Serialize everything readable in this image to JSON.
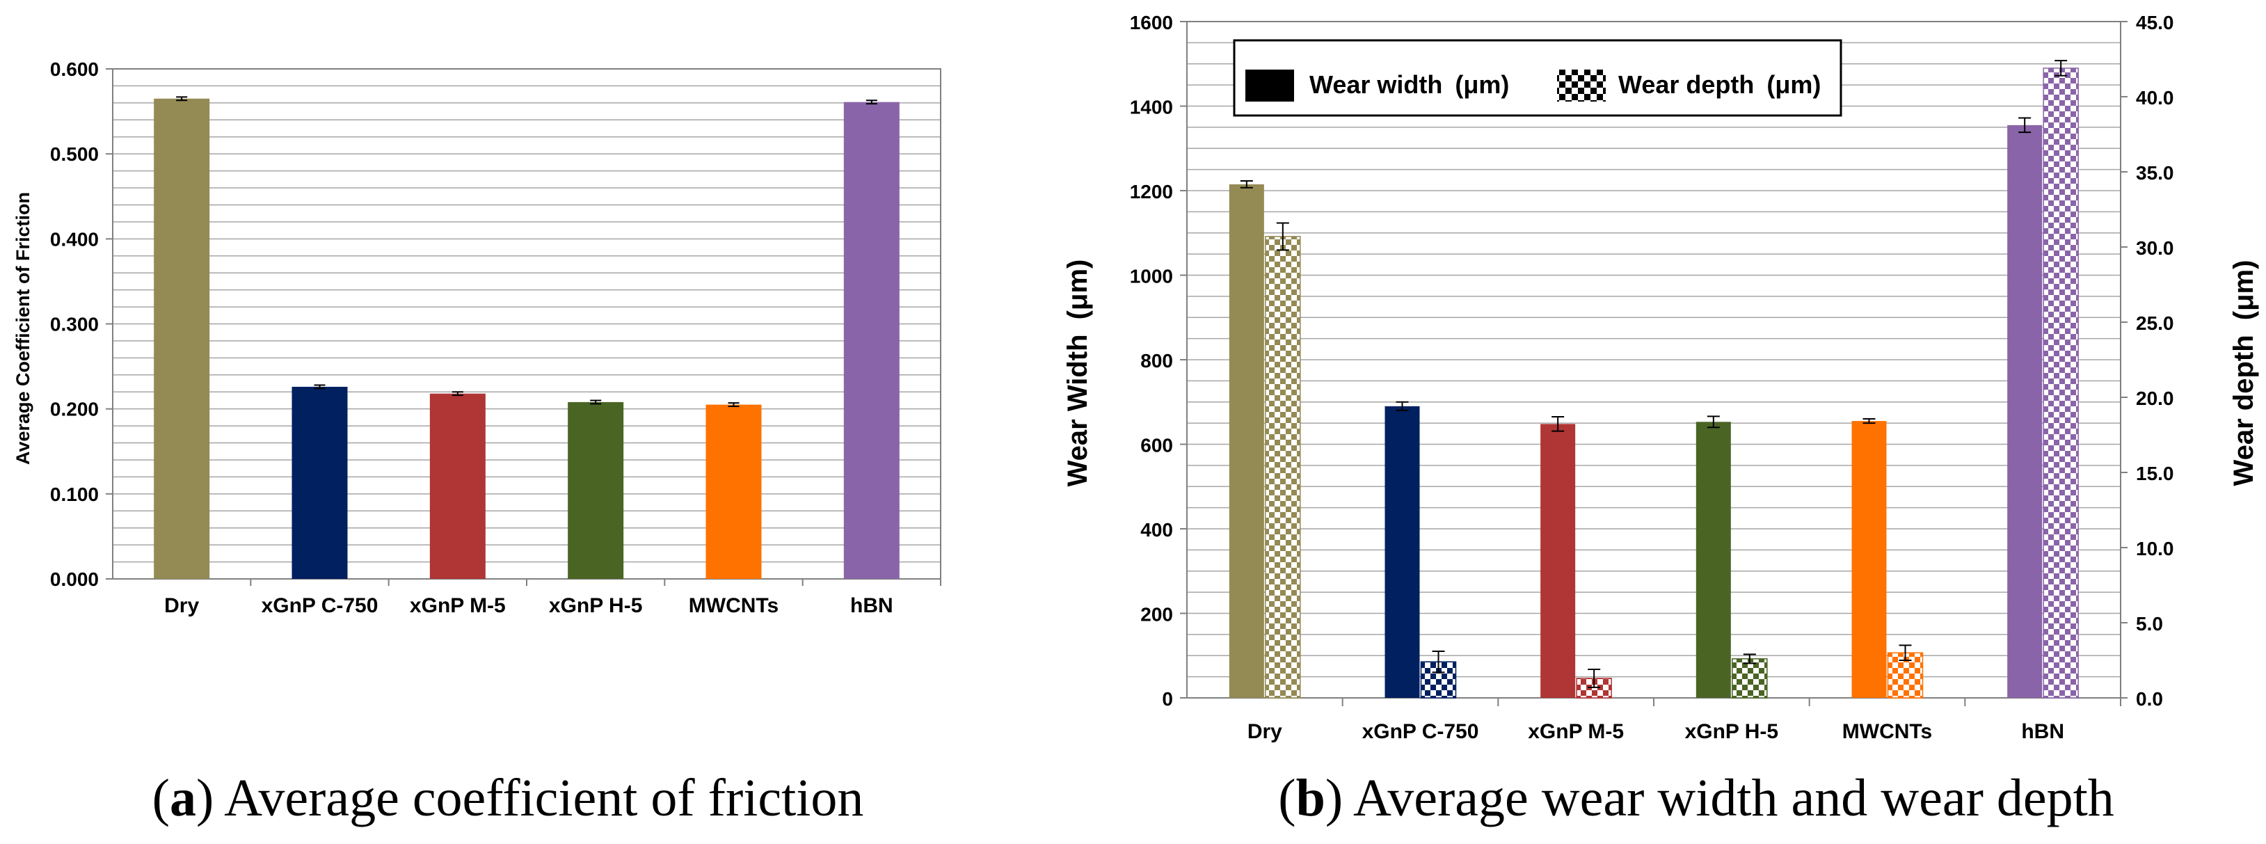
{
  "chart_data": [
    {
      "type": "bar",
      "title": "",
      "caption_letter": "a",
      "caption_text": " Average coefficient of friction",
      "xlabel": "",
      "ylabel": "Average Coefficient of Friction",
      "ylim": [
        0,
        0.6
      ],
      "yticks": [
        "0.000",
        "0.100",
        "0.200",
        "0.300",
        "0.400",
        "0.500",
        "0.600"
      ],
      "categories": [
        "Dry",
        "xGnP C-750",
        "xGnP M-5",
        "xGnP H-5",
        "MWCNTs",
        "hBN"
      ],
      "values": [
        0.565,
        0.226,
        0.218,
        0.208,
        0.205,
        0.561
      ],
      "errors": [
        0.002,
        0.002,
        0.002,
        0.002,
        0.002,
        0.002
      ],
      "colors": [
        "#948a54",
        "#002060",
        "#b03535",
        "#4a6424",
        "#ff7200",
        "#8a64a8"
      ]
    },
    {
      "type": "bar",
      "title": "",
      "caption_letter": "b",
      "caption_text": " Average wear width and wear depth",
      "xlabel": "",
      "ylabel": "Wear Width",
      "ylabel_unit": "(μm)",
      "ylabel_right": "Wear depth",
      "ylabel_right_unit": "(μm)",
      "ylim": [
        0,
        1600
      ],
      "ylim_right": [
        0,
        45
      ],
      "yticks": [
        "0",
        "200",
        "400",
        "600",
        "800",
        "1000",
        "1200",
        "1400",
        "1600"
      ],
      "yticks_right": [
        "0.0",
        "5.0",
        "10.0",
        "15.0",
        "20.0",
        "25.0",
        "30.0",
        "35.0",
        "40.0",
        "45.0"
      ],
      "categories": [
        "Dry",
        "xGnP C-750",
        "xGnP M-5",
        "xGnP H-5",
        "MWCNTs",
        "hBN"
      ],
      "colors": [
        "#948a54",
        "#002060",
        "#b03535",
        "#4a6424",
        "#ff7200",
        "#8a64a8"
      ],
      "legend": {
        "position": "top-left",
        "width_label": "Wear width",
        "depth_label": "Wear depth",
        "unit": "(μm)"
      },
      "series": [
        {
          "name": "Wear width (μm)",
          "axis": "left",
          "pattern": "solid",
          "values": [
            1215,
            690,
            648,
            653,
            655,
            1355
          ],
          "errors": [
            8,
            10,
            17,
            13,
            5,
            17
          ]
        },
        {
          "name": "Wear depth (μm)",
          "axis": "right",
          "pattern": "checker",
          "values": [
            30.7,
            2.4,
            1.3,
            2.6,
            3.0,
            41.9
          ],
          "errors": [
            0.9,
            0.7,
            0.6,
            0.3,
            0.5,
            0.5
          ]
        }
      ]
    }
  ]
}
